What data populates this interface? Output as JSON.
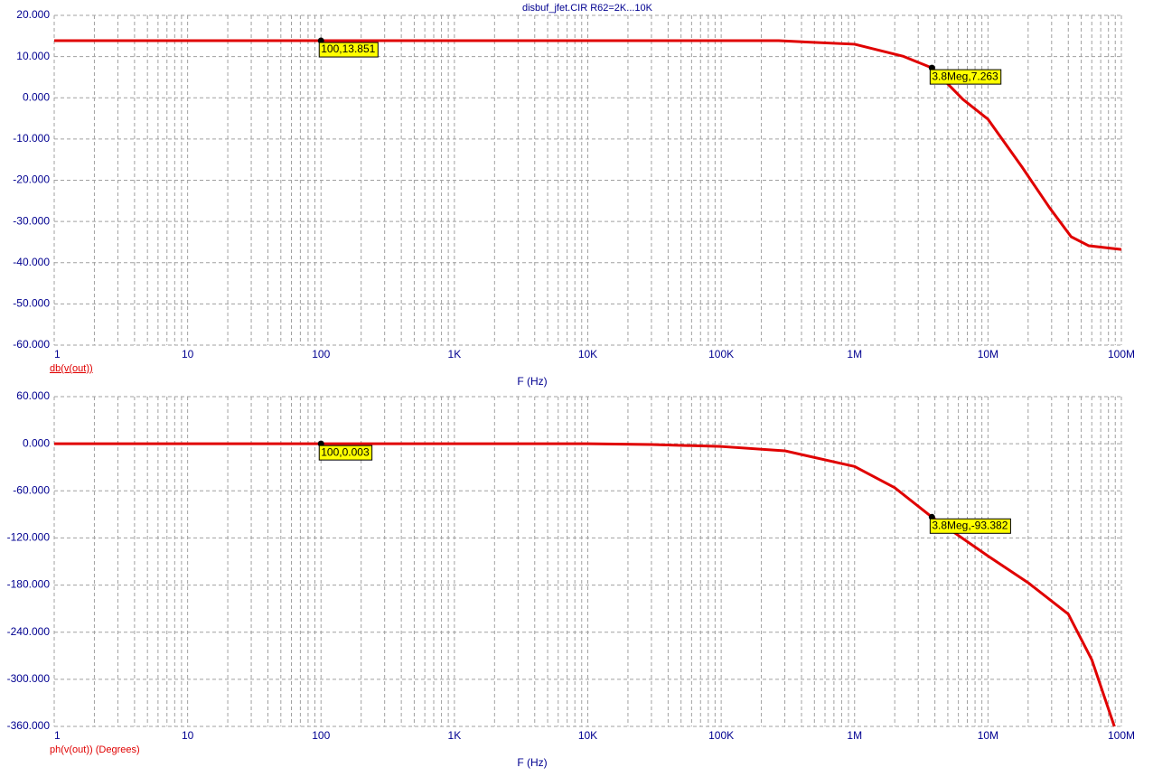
{
  "chart_data": [
    {
      "type": "line",
      "title": "disbuf_jfet.CIR R62=2K...10K",
      "x_label": "F (Hz)",
      "log_x": true,
      "grid": true,
      "x": [
        1,
        10,
        100,
        1000,
        10000,
        100000,
        270000,
        1000000,
        2300000,
        3800000,
        6500000,
        10000000,
        18000000,
        29000000,
        42000000,
        57000000,
        100000000
      ],
      "series": [
        {
          "name": "db(v(out))",
          "color": "#e00000",
          "values": [
            13.851,
            13.851,
            13.851,
            13.851,
            13.851,
            13.851,
            13.85,
            13.0,
            10.1,
            7.263,
            -0.4,
            -5.2,
            -16.8,
            -26.7,
            -33.7,
            -35.9,
            -36.8
          ]
        }
      ],
      "xlim": [
        1,
        100000000
      ],
      "xticks": [
        1,
        10,
        100,
        {
          "value": 1000,
          "label": "1K"
        },
        {
          "value": 10000,
          "label": "10K"
        },
        {
          "value": 100000,
          "label": "100K"
        },
        {
          "value": 1000000,
          "label": "1M"
        },
        {
          "value": 10000000,
          "label": "10M"
        },
        {
          "value": 100000000,
          "label": "100M"
        }
      ],
      "ylim": [
        -60,
        20
      ],
      "yticks": [
        {
          "value": 20,
          "label": "20.000"
        },
        {
          "value": 10,
          "label": "10.000"
        },
        {
          "value": 0,
          "label": "0.000"
        },
        {
          "value": -10,
          "label": "-10.000"
        },
        {
          "value": -20,
          "label": "-20.000"
        },
        {
          "value": -30,
          "label": "-30.000"
        },
        {
          "value": -40,
          "label": "-40.000"
        },
        {
          "value": -50,
          "label": "-50.000"
        },
        {
          "value": -60,
          "label": "-60.000"
        }
      ],
      "annotations": [
        {
          "x": 100,
          "y": 13.851,
          "label": "100,13.851"
        },
        {
          "x": 3800000,
          "y": 7.263,
          "label": "3.8Meg,7.263"
        }
      ]
    },
    {
      "type": "line",
      "x_label": "F (Hz)",
      "log_x": true,
      "grid": true,
      "x": [
        1,
        10,
        100,
        1000,
        10000,
        30000,
        100000,
        300000,
        1000000,
        2000000,
        3800000,
        10000000,
        20000000,
        40000000,
        60000000,
        88600000
      ],
      "series": [
        {
          "name": "ph(v(out)) (Degrees)",
          "color": "#e00000",
          "values": [
            0.003,
            0.003,
            0.003,
            0.003,
            0.003,
            -1,
            -3.5,
            -9,
            -29,
            -56,
            -93.382,
            -143,
            -177,
            -217,
            -275,
            -360
          ]
        }
      ],
      "xlim": [
        1,
        100000000
      ],
      "xticks": [
        1,
        10,
        100,
        {
          "value": 1000,
          "label": "1K"
        },
        {
          "value": 10000,
          "label": "10K"
        },
        {
          "value": 100000,
          "label": "100K"
        },
        {
          "value": 1000000,
          "label": "1M"
        },
        {
          "value": 10000000,
          "label": "10M"
        },
        {
          "value": 100000000,
          "label": "100M"
        }
      ],
      "ylim": [
        -360,
        60
      ],
      "yticks": [
        {
          "value": 60,
          "label": "60.000"
        },
        {
          "value": 0,
          "label": "0.000"
        },
        {
          "value": -60,
          "label": "-60.000"
        },
        {
          "value": -120,
          "label": "-120.000"
        },
        {
          "value": -180,
          "label": "-180.000"
        },
        {
          "value": -240,
          "label": "-240.000"
        },
        {
          "value": -300,
          "label": "-300.000"
        },
        {
          "value": -360,
          "label": "-360.000"
        }
      ],
      "annotations": [
        {
          "x": 100,
          "y": 0.003,
          "label": "100,0.003"
        },
        {
          "x": 3800000,
          "y": -93.382,
          "label": "3.8Meg,-93.382"
        }
      ]
    }
  ]
}
